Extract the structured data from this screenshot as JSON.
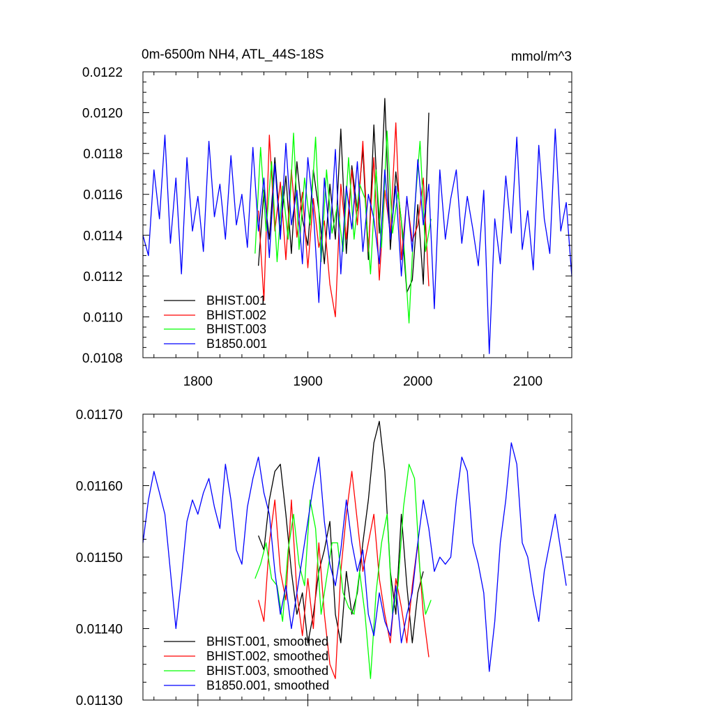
{
  "chart_data": [
    {
      "type": "line",
      "title": "0m-6500m NH4, ATL_44S-18S",
      "units": "mmol/m^3",
      "xlim": [
        1750,
        2140
      ],
      "ylim": [
        0.0108,
        0.0122
      ],
      "xticks": [
        1800,
        1900,
        2000,
        2100
      ],
      "xtick_labels": [
        "1800",
        "1900",
        "2000",
        "2100"
      ],
      "yticks": [
        0.0108,
        0.011,
        0.0112,
        0.0114,
        0.0116,
        0.0118,
        0.012,
        0.0122
      ],
      "ytick_labels": [
        "0.0108",
        "0.0110",
        "0.0112",
        "0.0114",
        "0.0116",
        "0.0118",
        "0.0120",
        "0.0122"
      ],
      "legend_position": "bottom-left",
      "series": [
        {
          "name": "BHIST.001",
          "color": "#000000",
          "x": [
            1855,
            1860,
            1865,
            1870,
            1875,
            1880,
            1885,
            1890,
            1895,
            1900,
            1905,
            1910,
            1915,
            1920,
            1925,
            1930,
            1935,
            1940,
            1945,
            1950,
            1955,
            1960,
            1965,
            1970,
            1975,
            1980,
            1985,
            1990,
            1995,
            2000,
            2005,
            2010
          ],
          "y": [
            0.01125,
            0.01162,
            0.01138,
            0.01178,
            0.01142,
            0.01169,
            0.01131,
            0.01176,
            0.01148,
            0.01135,
            0.01172,
            0.01152,
            0.01126,
            0.01165,
            0.01138,
            0.01192,
            0.01131,
            0.01174,
            0.01152,
            0.01182,
            0.01128,
            0.01194,
            0.01141,
            0.01207,
            0.01133,
            0.01171,
            0.01147,
            0.01112,
            0.01118,
            0.01155,
            0.01116,
            0.012
          ]
        },
        {
          "name": "BHIST.002",
          "color": "#ff0000",
          "x": [
            1855,
            1860,
            1865,
            1870,
            1875,
            1880,
            1885,
            1890,
            1895,
            1900,
            1905,
            1910,
            1915,
            1920,
            1925,
            1930,
            1935,
            1940,
            1945,
            1950,
            1955,
            1960,
            1965,
            1970,
            1975,
            1980,
            1985,
            1990,
            1995,
            2000,
            2005,
            2010
          ],
          "y": [
            0.01152,
            0.01108,
            0.01189,
            0.01142,
            0.01166,
            0.01128,
            0.01172,
            0.01139,
            0.01161,
            0.01124,
            0.01158,
            0.01134,
            0.01147,
            0.01116,
            0.011,
            0.01165,
            0.01138,
            0.01172,
            0.01145,
            0.01186,
            0.01132,
            0.01178,
            0.01118,
            0.01162,
            0.01141,
            0.01195,
            0.01128,
            0.01158,
            0.01137,
            0.01145,
            0.01168,
            0.01115
          ]
        },
        {
          "name": "BHIST.003",
          "color": "#00ff00",
          "x": [
            1852,
            1857,
            1862,
            1867,
            1872,
            1877,
            1882,
            1887,
            1892,
            1897,
            1902,
            1907,
            1912,
            1917,
            1922,
            1927,
            1932,
            1937,
            1942,
            1947,
            1952,
            1957,
            1962,
            1967,
            1972,
            1977,
            1982,
            1987,
            1992,
            1997,
            2002,
            2007,
            2012
          ],
          "y": [
            0.01131,
            0.01183,
            0.01142,
            0.01176,
            0.01127,
            0.01164,
            0.01138,
            0.0119,
            0.01133,
            0.01168,
            0.01145,
            0.01188,
            0.01127,
            0.01172,
            0.01141,
            0.01155,
            0.01132,
            0.01178,
            0.01138,
            0.01165,
            0.01158,
            0.01121,
            0.01172,
            0.01134,
            0.01191,
            0.01141,
            0.01161,
            0.01138,
            0.01097,
            0.01152,
            0.01186,
            0.01132,
            0.01148
          ]
        },
        {
          "name": "B1850.001",
          "color": "#0000ff",
          "x": [
            1750,
            1755,
            1760,
            1765,
            1770,
            1775,
            1780,
            1785,
            1790,
            1795,
            1800,
            1805,
            1810,
            1815,
            1820,
            1825,
            1830,
            1835,
            1840,
            1845,
            1850,
            1855,
            1860,
            1865,
            1870,
            1875,
            1880,
            1885,
            1890,
            1895,
            1900,
            1905,
            1910,
            1915,
            1920,
            1925,
            1930,
            1935,
            1940,
            1945,
            1950,
            1955,
            1960,
            1965,
            1970,
            1975,
            1980,
            1985,
            1990,
            1995,
            2000,
            2005,
            2010,
            2015,
            2020,
            2025,
            2030,
            2035,
            2040,
            2045,
            2050,
            2055,
            2060,
            2065,
            2070,
            2075,
            2080,
            2085,
            2090,
            2095,
            2100,
            2105,
            2110,
            2115,
            2120,
            2125,
            2130,
            2135,
            2140
          ],
          "y": [
            0.0114,
            0.0113,
            0.01172,
            0.01148,
            0.01189,
            0.01136,
            0.01168,
            0.01121,
            0.01178,
            0.01142,
            0.01159,
            0.01132,
            0.01186,
            0.01149,
            0.01165,
            0.01138,
            0.01179,
            0.01145,
            0.0116,
            0.01134,
            0.01183,
            0.01142,
            0.01168,
            0.01129,
            0.01175,
            0.01138,
            0.01185,
            0.01145,
            0.01162,
            0.01126,
            0.01178,
            0.01152,
            0.01107,
            0.01168,
            0.01138,
            0.01182,
            0.01121,
            0.01164,
            0.01143,
            0.01176,
            0.01132,
            0.0116,
            0.01148,
            0.01126,
            0.01172,
            0.01138,
            0.01164,
            0.0112,
            0.01159,
            0.01132,
            0.01177,
            0.01145,
            0.01165,
            0.01104,
            0.01172,
            0.01138,
            0.01158,
            0.01172,
            0.01136,
            0.01159,
            0.01143,
            0.01125,
            0.01162,
            0.01082,
            0.01148,
            0.01126,
            0.01169,
            0.01141,
            0.01188,
            0.01133,
            0.01152,
            0.01123,
            0.01184,
            0.01148,
            0.01131,
            0.01192,
            0.01142,
            0.01156,
            0.0112
          ]
        }
      ]
    },
    {
      "type": "line",
      "xlim": [
        1750,
        2140
      ],
      "ylim": [
        0.0113,
        0.0117
      ],
      "xticks": [
        1800,
        1900,
        2000,
        2100
      ],
      "yticks": [
        0.0113,
        0.0114,
        0.0115,
        0.0116,
        0.0117
      ],
      "ytick_labels": [
        "0.01130",
        "0.01140",
        "0.01150",
        "0.01160",
        "0.01170"
      ],
      "legend_position": "bottom-left",
      "series": [
        {
          "name": "BHIST.001, smoothed",
          "color": "#000000",
          "x": [
            1855,
            1860,
            1865,
            1870,
            1875,
            1880,
            1885,
            1890,
            1895,
            1900,
            1905,
            1910,
            1915,
            1920,
            1925,
            1930,
            1935,
            1940,
            1945,
            1950,
            1955,
            1960,
            1965,
            1970,
            1975,
            1980,
            1985,
            1990,
            1995,
            2000,
            2005
          ],
          "y": [
            0.01153,
            0.01151,
            0.01158,
            0.01162,
            0.01163,
            0.01156,
            0.01148,
            0.01142,
            0.01145,
            0.01138,
            0.01142,
            0.01148,
            0.01151,
            0.01155,
            0.01142,
            0.01138,
            0.01148,
            0.01142,
            0.01145,
            0.01152,
            0.01158,
            0.01166,
            0.01169,
            0.01162,
            0.01148,
            0.01142,
            0.01156,
            0.01146,
            0.01138,
            0.01145,
            0.01148
          ]
        },
        {
          "name": "BHIST.002, smoothed",
          "color": "#ff0000",
          "x": [
            1855,
            1860,
            1865,
            1870,
            1875,
            1880,
            1885,
            1890,
            1895,
            1900,
            1905,
            1910,
            1915,
            1920,
            1925,
            1930,
            1935,
            1940,
            1945,
            1950,
            1955,
            1960,
            1965,
            1970,
            1975,
            1980,
            1985,
            1990,
            1995,
            2000,
            2005,
            2010
          ],
          "y": [
            0.01144,
            0.01141,
            0.01152,
            0.01158,
            0.01148,
            0.01144,
            0.01158,
            0.01145,
            0.01139,
            0.01147,
            0.0114,
            0.01152,
            0.01142,
            0.01135,
            0.01133,
            0.01148,
            0.01156,
            0.01162,
            0.01155,
            0.01148,
            0.01152,
            0.01156,
            0.01147,
            0.01142,
            0.01138,
            0.01147,
            0.01143,
            0.01138,
            0.01146,
            0.01152,
            0.01142,
            0.01136
          ]
        },
        {
          "name": "BHIST.003, smoothed",
          "color": "#00ff00",
          "x": [
            1852,
            1857,
            1862,
            1867,
            1872,
            1877,
            1882,
            1887,
            1892,
            1897,
            1902,
            1907,
            1912,
            1917,
            1922,
            1927,
            1932,
            1937,
            1942,
            1947,
            1952,
            1957,
            1962,
            1967,
            1972,
            1977,
            1982,
            1987,
            1992,
            1997,
            2002,
            2007,
            2012
          ],
          "y": [
            0.01147,
            0.01149,
            0.01152,
            0.01147,
            0.01146,
            0.01141,
            0.01151,
            0.01156,
            0.01149,
            0.01146,
            0.01158,
            0.01154,
            0.01142,
            0.01147,
            0.01152,
            0.01152,
            0.01145,
            0.01143,
            0.01142,
            0.01148,
            0.01142,
            0.01133,
            0.01145,
            0.01152,
            0.01156,
            0.01142,
            0.01146,
            0.01157,
            0.01163,
            0.01161,
            0.01148,
            0.01142,
            0.01144
          ]
        },
        {
          "name": "B1850.001, smoothed",
          "color": "#0000ff",
          "x": [
            1750,
            1755,
            1760,
            1765,
            1770,
            1775,
            1780,
            1785,
            1790,
            1795,
            1800,
            1805,
            1810,
            1815,
            1820,
            1825,
            1830,
            1835,
            1840,
            1845,
            1850,
            1855,
            1860,
            1865,
            1870,
            1875,
            1880,
            1885,
            1890,
            1895,
            1900,
            1905,
            1910,
            1915,
            1920,
            1925,
            1930,
            1935,
            1940,
            1945,
            1950,
            1955,
            1960,
            1965,
            1970,
            1975,
            1980,
            1985,
            1990,
            1995,
            2000,
            2005,
            2010,
            2015,
            2020,
            2025,
            2030,
            2035,
            2040,
            2045,
            2050,
            2055,
            2060,
            2065,
            2070,
            2075,
            2080,
            2085,
            2090,
            2095,
            2100,
            2105,
            2110,
            2115,
            2120,
            2125,
            2130,
            2135
          ],
          "y": [
            0.01152,
            0.01158,
            0.01162,
            0.01159,
            0.01156,
            0.01148,
            0.0114,
            0.01147,
            0.01155,
            0.01158,
            0.01156,
            0.01159,
            0.01161,
            0.01157,
            0.01154,
            0.01163,
            0.01158,
            0.01151,
            0.01149,
            0.01157,
            0.01161,
            0.01164,
            0.01159,
            0.01156,
            0.01148,
            0.01142,
            0.01146,
            0.0114,
            0.01145,
            0.0115,
            0.01155,
            0.0116,
            0.01164,
            0.01155,
            0.01149,
            0.01146,
            0.01151,
            0.01158,
            0.01152,
            0.01148,
            0.01151,
            0.01142,
            0.01139,
            0.01145,
            0.01141,
            0.01139,
            0.01146,
            0.01138,
            0.01142,
            0.01145,
            0.01152,
            0.01158,
            0.01154,
            0.01148,
            0.0115,
            0.01149,
            0.0115,
            0.01158,
            0.01164,
            0.01162,
            0.01152,
            0.01149,
            0.01145,
            0.01134,
            0.01141,
            0.01152,
            0.01158,
            0.01166,
            0.01163,
            0.01152,
            0.0115,
            0.01145,
            0.01141,
            0.01148,
            0.01152,
            0.01156,
            0.01151,
            0.01146
          ]
        }
      ]
    }
  ]
}
